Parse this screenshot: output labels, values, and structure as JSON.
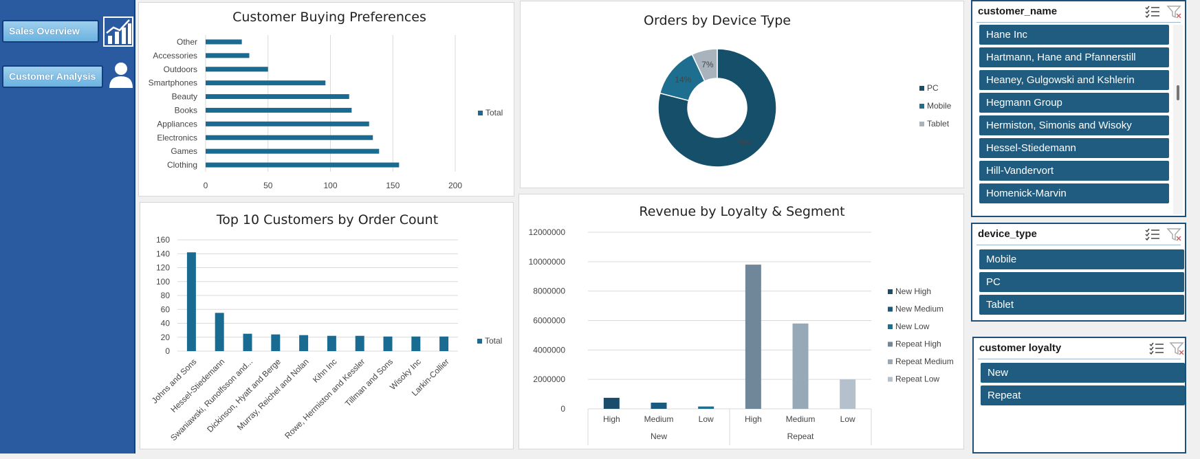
{
  "nav": {
    "sales_overview": "Sales Overview",
    "customer_analysis": "Customer Analysis"
  },
  "chart_data": [
    {
      "id": "buying",
      "type": "bar",
      "orientation": "horizontal",
      "title": "Customer Buying Preferences",
      "categories": [
        "Clothing",
        "Games",
        "Electronics",
        "Appliances",
        "Books",
        "Beauty",
        "Smartphones",
        "Outdoors",
        "Accessories",
        "Other"
      ],
      "series": [
        {
          "name": "Total",
          "values": [
            155,
            139,
            134,
            131,
            117,
            115,
            96,
            50,
            35,
            29
          ]
        }
      ],
      "xlim": [
        0,
        200
      ],
      "ticks": [
        0,
        50,
        100,
        150,
        200
      ],
      "grid": true,
      "legend": "right",
      "color": "#1a6b91"
    },
    {
      "id": "device",
      "type": "pie",
      "variant": "donut",
      "title": "Orders by Device Type",
      "categories": [
        "PC",
        "Mobile",
        "Tablet"
      ],
      "values": [
        79,
        14,
        7
      ],
      "labels": [
        "79%",
        "14%",
        "7%"
      ],
      "colors": [
        "#154f6a",
        "#1e6e8f",
        "#a9b3bd"
      ],
      "legend": "right"
    },
    {
      "id": "top10",
      "type": "bar",
      "title": "Top 10 Customers by Order Count",
      "categories": [
        "Johns and Sons",
        "Hessel-Stiedemann",
        "Swaniawski, Runolfsson and...",
        "Dickinson, Hyatt and Berge",
        "Murray, Reichel and Nolan",
        "Kihn Inc",
        "Rowe, Hermiston and Kessler",
        "Tillman and Sons",
        "Wisoky Inc",
        "Larkin-Collier"
      ],
      "series": [
        {
          "name": "Total",
          "values": [
            142,
            55,
            25,
            24,
            23,
            22,
            22,
            21,
            21,
            21
          ]
        }
      ],
      "ylim": [
        0,
        160
      ],
      "ticks": [
        0,
        20,
        40,
        60,
        80,
        100,
        120,
        140,
        160
      ],
      "grid": true,
      "legend": "right",
      "color": "#1a6b91"
    },
    {
      "id": "loyalty",
      "type": "bar",
      "title": "Revenue by Loyalty & Segment",
      "groups": [
        {
          "name": "New",
          "categories": [
            "High",
            "Medium",
            "Low"
          ]
        },
        {
          "name": "Repeat",
          "categories": [
            "High",
            "Medium",
            "Low"
          ]
        }
      ],
      "series": [
        {
          "name": "New High",
          "values": [
            750000
          ]
        },
        {
          "name": "New Medium",
          "values": [
            420000
          ]
        },
        {
          "name": "New Low",
          "values": [
            160000
          ]
        },
        {
          "name": "Repeat High",
          "values": [
            9800000
          ]
        },
        {
          "name": "Repeat Medium",
          "values": [
            5800000
          ]
        },
        {
          "name": "Repeat Low",
          "values": [
            2000000
          ]
        }
      ],
      "colors": [
        "#1a4d6b",
        "#1a5a80",
        "#1e6e8f",
        "#6f8799",
        "#97a8b7",
        "#b4c0cb"
      ],
      "ylim": [
        0,
        12000000
      ],
      "ticks": [
        0,
        2000000,
        4000000,
        6000000,
        8000000,
        10000000,
        12000000
      ],
      "grid": true,
      "legend": "right"
    }
  ],
  "slicers": {
    "customer_name": {
      "header": "customer_name",
      "items": [
        "Hane Inc",
        "Hartmann, Hane and Pfannerstill",
        "Heaney, Gulgowski and Kshlerin",
        "Hegmann Group",
        "Hermiston, Simonis and Wisoky",
        "Hessel-Stiedemann",
        "Hill-Vandervort",
        "Homenick-Marvin"
      ]
    },
    "device_type": {
      "header": "device_type",
      "items": [
        "Mobile",
        "PC",
        "Tablet"
      ]
    },
    "customer_loyalty": {
      "header": "customer loyalty",
      "items": [
        "New",
        "Repeat"
      ]
    }
  },
  "icons": {
    "select_multiple": "multi-select-icon",
    "clear_filter": "clear-filter-icon",
    "chart": "bar-chart-icon",
    "user": "user-icon"
  }
}
